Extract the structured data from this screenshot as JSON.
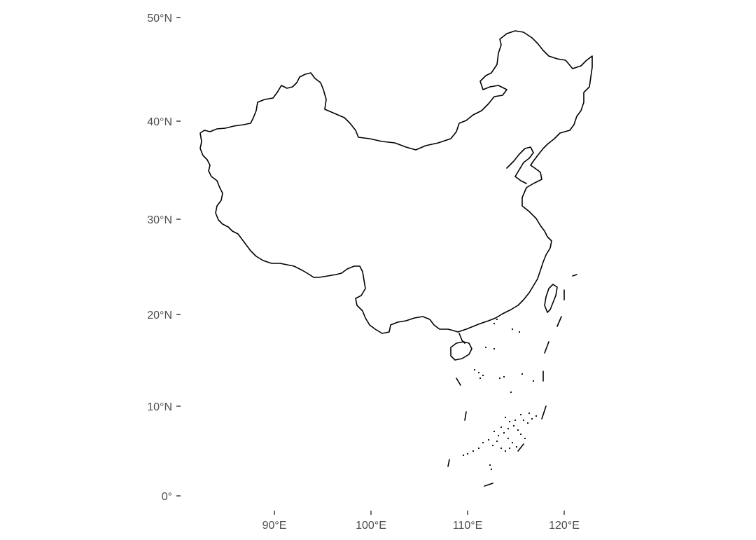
{
  "chart_data": {
    "type": "map",
    "title": "",
    "xlabel": "",
    "ylabel": "",
    "background": "#ffffff",
    "outline_color": "#000000",
    "tick_label_color": "#4d4d4d",
    "grid": false,
    "x_ticks": [
      {
        "value": 90,
        "label": "90°E"
      },
      {
        "value": 100,
        "label": "100°E"
      },
      {
        "value": 110,
        "label": "110°E"
      },
      {
        "value": 120,
        "label": "120°E"
      }
    ],
    "y_ticks": [
      {
        "value": 0,
        "label": "0°"
      },
      {
        "value": 10,
        "label": "10°N"
      },
      {
        "value": 20,
        "label": "20°N"
      },
      {
        "value": 30,
        "label": "30°N"
      },
      {
        "value": 40,
        "label": "40°N"
      },
      {
        "value": 50,
        "label": "50°N"
      }
    ],
    "xlim": [
      80,
      125
    ],
    "ylim": [
      0,
      50
    ]
  }
}
